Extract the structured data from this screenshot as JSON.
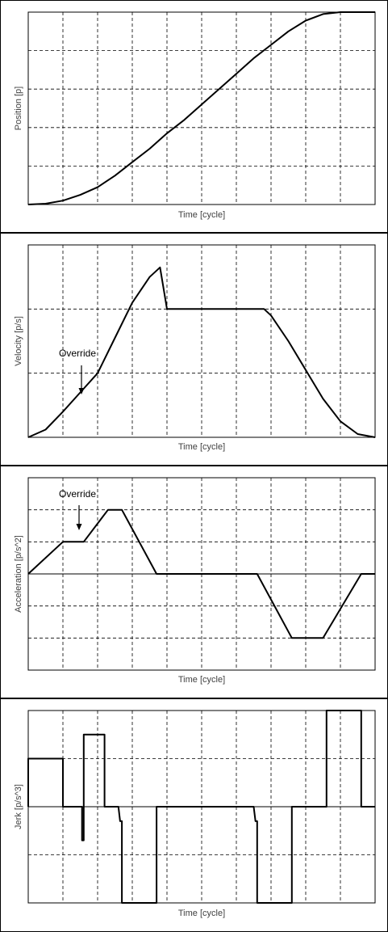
{
  "chart_data": [
    {
      "type": "line",
      "title": "",
      "xlabel": "Time [cycle]",
      "ylabel": "Position [p]",
      "xlim": [
        0,
        10
      ],
      "ylim": [
        0,
        5
      ],
      "grid": true,
      "series": [
        {
          "values_x": [
            0,
            0.5,
            1,
            1.5,
            2,
            2.5,
            3,
            3.5,
            4,
            4.5,
            5,
            5.5,
            6,
            6.5,
            7,
            7.5,
            8,
            8.5,
            9,
            9.5,
            10
          ],
          "values_y": [
            0,
            0.02,
            0.1,
            0.25,
            0.45,
            0.75,
            1.1,
            1.45,
            1.85,
            2.2,
            2.6,
            3.0,
            3.4,
            3.8,
            4.15,
            4.5,
            4.78,
            4.95,
            5.0,
            5.0,
            5.0
          ]
        }
      ]
    },
    {
      "type": "line",
      "title": "",
      "xlabel": "Time [cycle]",
      "ylabel": "Velocity [p/s]",
      "xlim": [
        0,
        10
      ],
      "ylim": [
        0,
        3
      ],
      "grid": true,
      "annotations": [
        {
          "text": "Override",
          "x": 1.6,
          "y": 1.3
        }
      ],
      "series": [
        {
          "values_x": [
            0,
            0.5,
            1,
            1.5,
            2,
            2.5,
            3,
            3.5,
            3.8,
            4,
            5,
            6,
            6.6,
            6.8,
            7,
            7.5,
            8,
            8.5,
            9,
            9.5,
            10
          ],
          "values_y": [
            0,
            0.12,
            0.4,
            0.7,
            1.0,
            1.55,
            2.1,
            2.5,
            2.65,
            2.0,
            2.0,
            2.0,
            2.0,
            2.0,
            1.9,
            1.5,
            1.05,
            0.6,
            0.25,
            0.05,
            0
          ]
        }
      ]
    },
    {
      "type": "line",
      "title": "",
      "xlabel": "Time [cycle]",
      "ylabel": "Acceleration [p/s^2]",
      "xlim": [
        0,
        10
      ],
      "ylim": [
        -3,
        3
      ],
      "grid": true,
      "annotations": [
        {
          "text": "Override",
          "x": 1.6,
          "y": 1.1
        }
      ],
      "series": [
        {
          "values_x": [
            0,
            1,
            1.6,
            2.3,
            2.7,
            3.7,
            6.6,
            7.6,
            8.5,
            9.6,
            10
          ],
          "values_y": [
            0,
            1,
            1,
            2,
            2,
            0,
            0,
            -2,
            -2,
            0,
            0
          ]
        }
      ]
    },
    {
      "type": "line",
      "title": "",
      "xlabel": "Time [cycle]",
      "ylabel": "Jerk [p/s^3]",
      "xlim": [
        0,
        10
      ],
      "ylim": [
        -2,
        2
      ],
      "grid": true,
      "series": [
        {
          "values_x": [
            0,
            0,
            1,
            1,
            1.55,
            1.55,
            1.6,
            1.6,
            2.2,
            2.2,
            2.6,
            2.65,
            2.7,
            2.7,
            3.7,
            3.7,
            6.5,
            6.55,
            6.6,
            6.6,
            7.6,
            7.6,
            8.6,
            8.6,
            9.6,
            9.6,
            10
          ],
          "values_y": [
            0,
            1,
            1,
            0,
            0,
            -0.7,
            -0.7,
            1.5,
            1.5,
            0,
            0,
            -0.3,
            -0.3,
            -2,
            -2,
            0,
            0,
            -0.3,
            -0.3,
            -2,
            -2,
            0,
            0,
            2,
            2,
            0,
            0
          ]
        }
      ]
    }
  ]
}
